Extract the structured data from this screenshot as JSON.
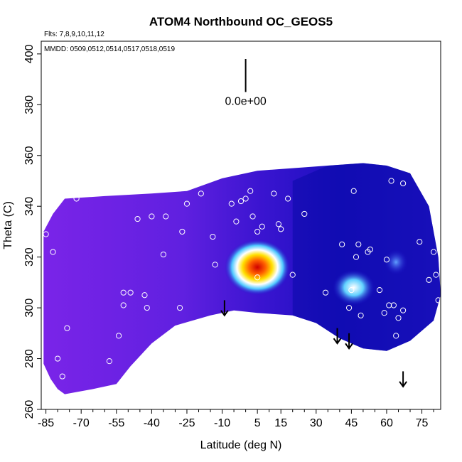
{
  "chart_data": {
    "type": "heatmap",
    "title": "ATOM4 Northbound OC_GEOS5",
    "xlabel": "Latitude (deg N)",
    "ylabel": "Theta (C)",
    "xlim": [
      -87,
      83
    ],
    "ylim": [
      260,
      405
    ],
    "x_ticks": [
      -85,
      -70,
      -55,
      -40,
      -25,
      -10,
      5,
      15,
      30,
      45,
      60,
      75
    ],
    "y_ticks": [
      260,
      280,
      300,
      320,
      340,
      360,
      380,
      400
    ],
    "annotations": {
      "flights": "Flts: 7,8,9,10,11,12",
      "dates": "MMDD: 0509,0512,0514,0517,0518,0519",
      "scale_label": "0.0e+00"
    },
    "colors": {
      "background_field": "#6a1fe0",
      "mid_field": "#1a10c8",
      "low_field": "#0a0aa0",
      "hot_core": "#e01010",
      "warm": "#ffcc00",
      "bright": "#40c0ff"
    },
    "field_boundary": [
      [
        -86,
        278
      ],
      [
        -86,
        330
      ],
      [
        -82,
        337
      ],
      [
        -77,
        343
      ],
      [
        -60,
        344
      ],
      [
        -40,
        345
      ],
      [
        -25,
        346
      ],
      [
        -10,
        351
      ],
      [
        5,
        354
      ],
      [
        20,
        355
      ],
      [
        35,
        356
      ],
      [
        50,
        357
      ],
      [
        60,
        356
      ],
      [
        70,
        353
      ],
      [
        78,
        340
      ],
      [
        82,
        320
      ],
      [
        83,
        305
      ],
      [
        80,
        295
      ],
      [
        70,
        287
      ],
      [
        60,
        283
      ],
      [
        50,
        284
      ],
      [
        40,
        288
      ],
      [
        30,
        294
      ],
      [
        20,
        297
      ],
      [
        5,
        298
      ],
      [
        -5,
        299
      ],
      [
        -15,
        297
      ],
      [
        -30,
        293
      ],
      [
        -40,
        286
      ],
      [
        -43,
        283
      ],
      [
        -49,
        277
      ],
      [
        -55,
        270
      ],
      [
        -65,
        268
      ],
      [
        -77,
        266
      ],
      [
        -80,
        268
      ],
      [
        -83,
        272
      ]
    ],
    "hotspots": [
      {
        "lat": 5,
        "theta": 316,
        "rx": 14,
        "ry": 11,
        "level": "high"
      },
      {
        "lat": 46,
        "theta": 308,
        "rx": 9,
        "ry": 7,
        "level": "medium"
      },
      {
        "lat": 64,
        "theta": 318,
        "rx": 5,
        "ry": 5,
        "level": "low"
      }
    ],
    "points": [
      [
        -85,
        329
      ],
      [
        -82,
        322
      ],
      [
        -80,
        280
      ],
      [
        -78,
        273
      ],
      [
        -76,
        292
      ],
      [
        -72,
        343
      ],
      [
        -52,
        306
      ],
      [
        -49,
        306
      ],
      [
        -46,
        335
      ],
      [
        -43,
        305
      ],
      [
        -42,
        300
      ],
      [
        -40,
        336
      ],
      [
        -35,
        321
      ],
      [
        -34,
        336
      ],
      [
        -28,
        300
      ],
      [
        -27,
        330
      ],
      [
        -25,
        341
      ],
      [
        -19,
        345
      ],
      [
        -14,
        328
      ],
      [
        -13,
        317
      ],
      [
        -6,
        341
      ],
      [
        -4,
        334
      ],
      [
        -2,
        342
      ],
      [
        0,
        343
      ],
      [
        2,
        346
      ],
      [
        3,
        336
      ],
      [
        5,
        330
      ],
      [
        7,
        332
      ],
      [
        12,
        345
      ],
      [
        14,
        333
      ],
      [
        15,
        331
      ],
      [
        18,
        343
      ],
      [
        20,
        313
      ],
      [
        25,
        337
      ],
      [
        34,
        306
      ],
      [
        41,
        325
      ],
      [
        44,
        300
      ],
      [
        45,
        307
      ],
      [
        46,
        346
      ],
      [
        47,
        320
      ],
      [
        48,
        325
      ],
      [
        49,
        297
      ],
      [
        52,
        322
      ],
      [
        53,
        323
      ],
      [
        57,
        307
      ],
      [
        59,
        298
      ],
      [
        60,
        319
      ],
      [
        61,
        301
      ],
      [
        62,
        350
      ],
      [
        63,
        301
      ],
      [
        64,
        289
      ],
      [
        65,
        296
      ],
      [
        67,
        299
      ],
      [
        67,
        349
      ],
      [
        74,
        326
      ],
      [
        78,
        311
      ],
      [
        80,
        322
      ],
      [
        81,
        313
      ],
      [
        82,
        303
      ],
      [
        5,
        312
      ],
      [
        -52,
        301
      ],
      [
        -58,
        279
      ],
      [
        -54,
        289
      ]
    ],
    "arrows": [
      {
        "lat": -9,
        "theta_top": 303,
        "theta_bottom": 297
      },
      {
        "lat": 39,
        "theta_top": 292,
        "theta_bottom": 286
      },
      {
        "lat": 44,
        "theta_top": 290,
        "theta_bottom": 284
      },
      {
        "lat": 67,
        "theta_top": 275,
        "theta_bottom": 269
      }
    ],
    "scale_bar": {
      "lat": 0,
      "theta_top": 398,
      "theta_bottom": 385
    }
  }
}
